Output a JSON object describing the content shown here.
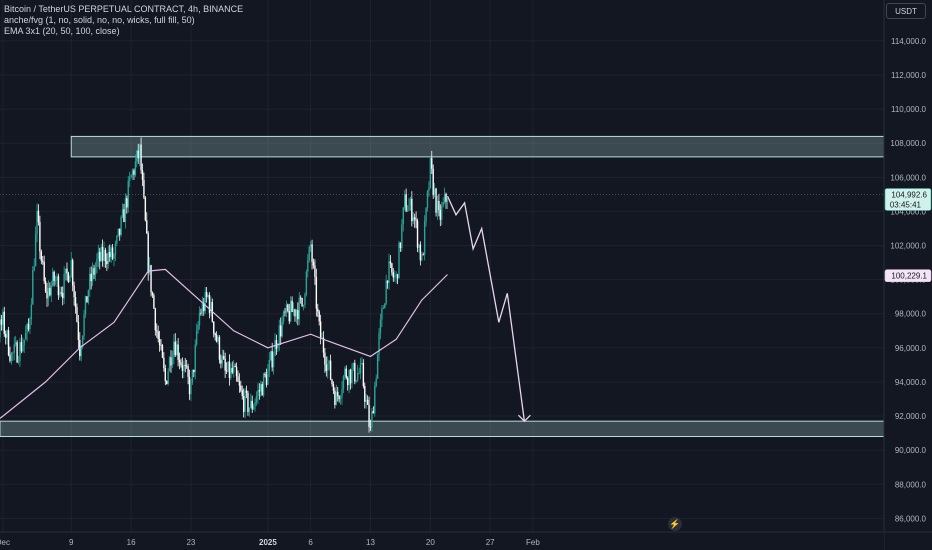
{
  "legend": {
    "symbol": "Bitcoin / TetherUS PERPETUAL CONTRACT, 4h, BINANCE",
    "indicator1": "anche/fvg (1, no, solid, no, no, wicks, full fill, 50)",
    "indicator2": "EMA 3x1 (20, 50, 100, close)"
  },
  "toolbar": {
    "currency": "USDT"
  },
  "price_labels": {
    "last_price": "104,992.6",
    "countdown": "03:45:41",
    "ema": "100,229.1"
  },
  "colors": {
    "background": "#131722",
    "up": "#26a69a",
    "down": "#ffffff",
    "ema": "#e1bee7",
    "zone": "#b2dfdb",
    "projection": "#e8d5f0"
  },
  "icons": {
    "event": "lightning-icon"
  },
  "chart_data": {
    "type": "candlestick",
    "timeframe": "4h",
    "yaxis": {
      "ticks": [
        86000,
        88000,
        90000,
        92000,
        94000,
        96000,
        98000,
        100000,
        102000,
        104000,
        106000,
        108000,
        110000,
        112000,
        114000
      ],
      "tick_labels": [
        "86,000.0",
        "88,000.0",
        "90,000.0",
        "92,000.0",
        "94,000.0",
        "96,000.0",
        "98,000.0",
        "100,000.0",
        "102,000.0",
        "104,000.0",
        "106,000.0",
        "108,000.0",
        "110,000.0",
        "112,000.0",
        "114,000.0"
      ],
      "ylim": [
        85200,
        116400
      ],
      "side": "right"
    },
    "xaxis": {
      "range": [
        "2024-11-27",
        "2025-02-03"
      ],
      "ticks": [
        {
          "date": "2024-12-01",
          "label": "Dec"
        },
        {
          "date": "2024-12-09",
          "label": "9"
        },
        {
          "date": "2024-12-16",
          "label": "16"
        },
        {
          "date": "2024-12-23",
          "label": "23"
        },
        {
          "date": "2025-01-01",
          "label": "2025"
        },
        {
          "date": "2025-01-06",
          "label": "6"
        },
        {
          "date": "2025-01-13",
          "label": "13"
        },
        {
          "date": "2025-01-20",
          "label": "20"
        },
        {
          "date": "2025-01-27",
          "label": "27"
        },
        {
          "date": "2025-02-01",
          "label": "Feb"
        }
      ]
    },
    "price_path": [
      [
        "2024-11-27",
        91500
      ],
      [
        "2024-11-28",
        95500
      ],
      [
        "2024-11-29",
        97000
      ],
      [
        "2024-11-30",
        96500
      ],
      [
        "2024-12-01",
        97500
      ],
      [
        "2024-12-02",
        95500
      ],
      [
        "2024-12-03",
        96000
      ],
      [
        "2024-12-04",
        97000
      ],
      [
        "2024-12-05",
        103500
      ],
      [
        "2024-12-06",
        99000
      ],
      [
        "2024-12-07",
        100000
      ],
      [
        "2024-12-08",
        99500
      ],
      [
        "2024-12-09",
        101000
      ],
      [
        "2024-12-10",
        96000
      ],
      [
        "2024-12-11",
        99500
      ],
      [
        "2024-12-12",
        101000
      ],
      [
        "2024-12-13",
        101500
      ],
      [
        "2024-12-14",
        101300
      ],
      [
        "2024-12-15",
        103500
      ],
      [
        "2024-12-16",
        106000
      ],
      [
        "2024-12-17",
        107500
      ],
      [
        "2024-12-18",
        101000
      ],
      [
        "2024-12-19",
        97000
      ],
      [
        "2024-12-20",
        94000
      ],
      [
        "2024-12-21",
        96500
      ],
      [
        "2024-12-22",
        95000
      ],
      [
        "2024-12-23",
        93500
      ],
      [
        "2024-12-24",
        98000
      ],
      [
        "2024-12-25",
        99000
      ],
      [
        "2024-12-26",
        96500
      ],
      [
        "2024-12-27",
        94500
      ],
      [
        "2024-12-28",
        94500
      ],
      [
        "2024-12-29",
        93000
      ],
      [
        "2024-12-30",
        92500
      ],
      [
        "2024-12-31",
        93500
      ],
      [
        "2025-01-01",
        94500
      ],
      [
        "2025-01-02",
        96500
      ],
      [
        "2025-01-03",
        97800
      ],
      [
        "2025-01-04",
        98200
      ],
      [
        "2025-01-05",
        98500
      ],
      [
        "2025-01-06",
        102000
      ],
      [
        "2025-01-07",
        97000
      ],
      [
        "2025-01-08",
        95000
      ],
      [
        "2025-01-09",
        93000
      ],
      [
        "2025-01-10",
        94500
      ],
      [
        "2025-01-11",
        94500
      ],
      [
        "2025-01-12",
        94500
      ],
      [
        "2025-01-13",
        91000
      ],
      [
        "2025-01-14",
        96500
      ],
      [
        "2025-01-15",
        100500
      ],
      [
        "2025-01-16",
        100000
      ],
      [
        "2025-01-17",
        104500
      ],
      [
        "2025-01-18",
        104000
      ],
      [
        "2025-01-19",
        101000
      ],
      [
        "2025-01-20",
        106500
      ],
      [
        "2025-01-21",
        103500
      ],
      [
        "2025-01-22",
        105000
      ]
    ],
    "ema_path": [
      [
        "2024-11-27",
        90500
      ],
      [
        "2024-12-01",
        92000
      ],
      [
        "2024-12-06",
        94000
      ],
      [
        "2024-12-10",
        96000
      ],
      [
        "2024-12-14",
        97500
      ],
      [
        "2024-12-18",
        100500
      ],
      [
        "2024-12-20",
        100600
      ],
      [
        "2024-12-24",
        98800
      ],
      [
        "2024-12-28",
        97000
      ],
      [
        "2025-01-01",
        96000
      ],
      [
        "2025-01-06",
        96800
      ],
      [
        "2025-01-08",
        96400
      ],
      [
        "2025-01-13",
        95500
      ],
      [
        "2025-01-16",
        96500
      ],
      [
        "2025-01-19",
        98800
      ],
      [
        "2025-01-22",
        100300
      ]
    ],
    "zones": [
      {
        "from": "2024-12-09",
        "price_high": 108400,
        "price_low": 107200
      },
      {
        "from": "2024-11-27",
        "price_high": 91700,
        "price_low": 90800
      }
    ],
    "projection": [
      [
        "2025-01-22",
        104900
      ],
      [
        "2025-01-23",
        103800
      ],
      [
        "2025-01-24",
        104500
      ],
      [
        "2025-01-25",
        101800
      ],
      [
        "2025-01-26",
        103000
      ],
      [
        "2025-01-28",
        97500
      ],
      [
        "2025-01-29",
        99200
      ],
      [
        "2025-01-31",
        91700
      ]
    ],
    "last_price": 104992.6,
    "ema_last": 100229.1
  }
}
